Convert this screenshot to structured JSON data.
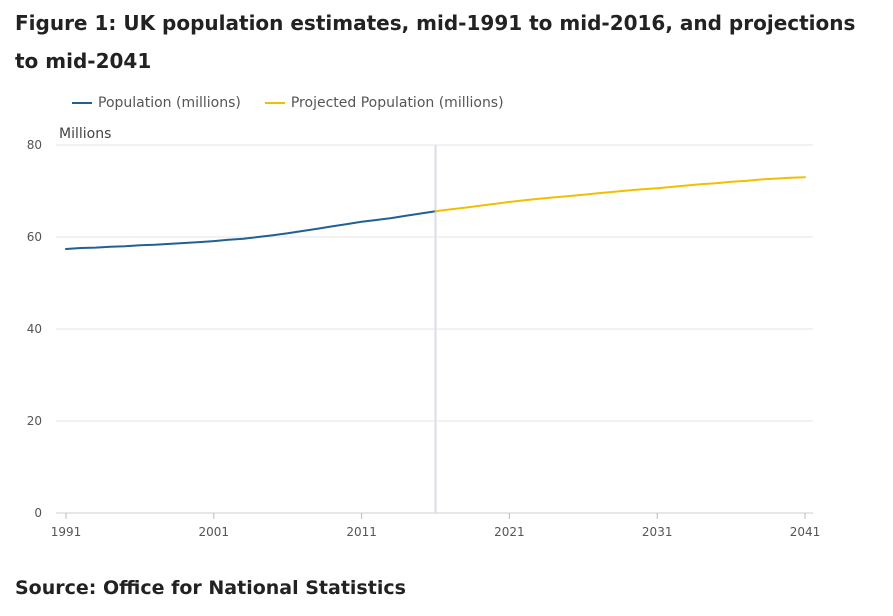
{
  "title": "Figure 1: UK population estimates, mid-1991 to mid-2016, and projections to mid-2041",
  "source": "Source: Office for National Statistics",
  "chart_data": {
    "type": "line",
    "title": "Figure 1: UK population estimates, mid-1991 to mid-2016, and projections to mid-2041",
    "ylabel": "Millions",
    "xlabel": "",
    "xlim": [
      1991,
      2041
    ],
    "ylim": [
      0,
      80
    ],
    "x_ticks": [
      "1991",
      "2001",
      "2011",
      "2021",
      "2031",
      "2041"
    ],
    "y_ticks": [
      "0",
      "20",
      "40",
      "60",
      "80"
    ],
    "grid": true,
    "legend_position": "top-left",
    "divider_x": 2016,
    "series": [
      {
        "name": "Population (millions)",
        "color": "#206095",
        "x": [
          1991,
          1992,
          1993,
          1994,
          1995,
          1996,
          1997,
          1998,
          1999,
          2000,
          2001,
          2002,
          2003,
          2004,
          2005,
          2006,
          2007,
          2008,
          2009,
          2010,
          2011,
          2012,
          2013,
          2014,
          2015,
          2016
        ],
        "values": [
          57.4,
          57.6,
          57.7,
          57.9,
          58.0,
          58.2,
          58.3,
          58.5,
          58.7,
          58.9,
          59.1,
          59.4,
          59.6,
          60.0,
          60.4,
          60.8,
          61.3,
          61.8,
          62.3,
          62.8,
          63.3,
          63.7,
          64.1,
          64.6,
          65.1,
          65.6
        ]
      },
      {
        "name": "Projected Population (millions)",
        "color": "#f0c000",
        "x": [
          2016,
          2017,
          2018,
          2019,
          2020,
          2021,
          2022,
          2023,
          2024,
          2025,
          2026,
          2027,
          2028,
          2029,
          2030,
          2031,
          2032,
          2033,
          2034,
          2035,
          2036,
          2037,
          2038,
          2039,
          2040,
          2041
        ],
        "values": [
          65.6,
          66.0,
          66.4,
          66.8,
          67.2,
          67.6,
          68.0,
          68.3,
          68.6,
          68.9,
          69.2,
          69.5,
          69.8,
          70.1,
          70.4,
          70.6,
          70.9,
          71.2,
          71.5,
          71.7,
          72.0,
          72.2,
          72.5,
          72.7,
          72.9,
          73.0
        ]
      }
    ]
  }
}
